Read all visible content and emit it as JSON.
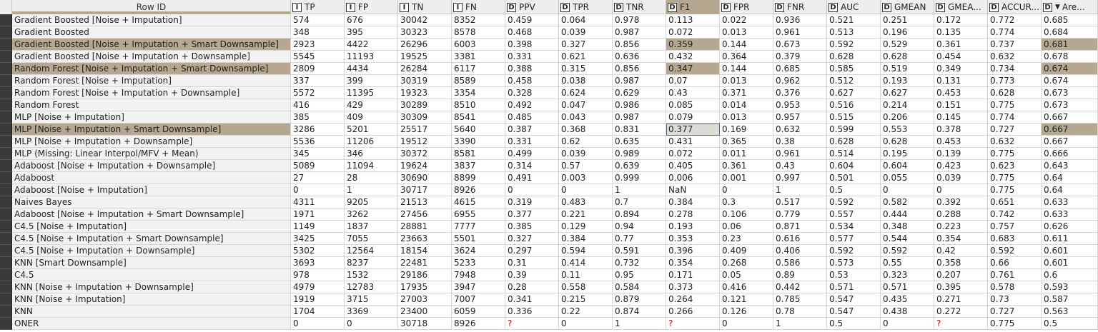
{
  "table": {
    "rowid_header": "Row ID",
    "columns": [
      {
        "type": "I",
        "label": "TP",
        "width": 75
      },
      {
        "type": "I",
        "label": "FP",
        "width": 75
      },
      {
        "type": "I",
        "label": "TN",
        "width": 75
      },
      {
        "type": "I",
        "label": "FN",
        "width": 75
      },
      {
        "type": "D",
        "label": "PPV",
        "width": 75
      },
      {
        "type": "D",
        "label": "TPR",
        "width": 75
      },
      {
        "type": "D",
        "label": "TNR",
        "width": 75
      },
      {
        "type": "D",
        "label": "F1",
        "width": 75
      },
      {
        "type": "D",
        "label": "FPR",
        "width": 75
      },
      {
        "type": "D",
        "label": "FNR",
        "width": 75
      },
      {
        "type": "D",
        "label": "AUC",
        "width": 75
      },
      {
        "type": "D",
        "label": "GMEAN",
        "width": 75
      },
      {
        "type": "D",
        "label": "GMEA...",
        "width": 75
      },
      {
        "type": "D",
        "label": "ACCUR...",
        "width": 75
      },
      {
        "type": "D",
        "label": "Are...",
        "width": 79
      }
    ],
    "rows": [
      {
        "id": "Gradient Boosted [Noise + Imputation]",
        "v": [
          "574",
          "676",
          "30042",
          "8352",
          "0.459",
          "0.064",
          "0.978",
          "0.113",
          "0.022",
          "0.936",
          "0.521",
          "0.251",
          "0.172",
          "0.772",
          "0.685"
        ]
      },
      {
        "id": "Gradient Boosted",
        "v": [
          "348",
          "395",
          "30323",
          "8578",
          "0.468",
          "0.039",
          "0.987",
          "0.072",
          "0.013",
          "0.961",
          "0.513",
          "0.196",
          "0.135",
          "0.774",
          "0.684"
        ]
      },
      {
        "id": "Gradient Boosted [Noise + Imputation + Smart Downsample]",
        "hl": true,
        "v": [
          "2923",
          "4422",
          "26296",
          "6003",
          "0.398",
          "0.327",
          "0.856",
          "0.359",
          "0.144",
          "0.673",
          "0.592",
          "0.529",
          "0.361",
          "0.737",
          "0.681"
        ]
      },
      {
        "id": "Gradient Boosted [Noise + Imputation + Downsample]",
        "v": [
          "5545",
          "11193",
          "19525",
          "3381",
          "0.331",
          "0.621",
          "0.636",
          "0.432",
          "0.364",
          "0.379",
          "0.628",
          "0.628",
          "0.454",
          "0.632",
          "0.678"
        ]
      },
      {
        "id": "Random Forest [Noise + Imputation + Smart Downsample]",
        "hl": true,
        "v": [
          "2809",
          "4434",
          "26284",
          "6117",
          "0.388",
          "0.315",
          "0.856",
          "0.347",
          "0.144",
          "0.685",
          "0.585",
          "0.519",
          "0.349",
          "0.734",
          "0.674"
        ]
      },
      {
        "id": "Random Forest [Noise + Imputation]",
        "v": [
          "337",
          "399",
          "30319",
          "8589",
          "0.458",
          "0.038",
          "0.987",
          "0.07",
          "0.013",
          "0.962",
          "0.512",
          "0.193",
          "0.131",
          "0.773",
          "0.674"
        ]
      },
      {
        "id": "Random Forest [Noise + Imputation + Downsample]",
        "v": [
          "5572",
          "11395",
          "19323",
          "3354",
          "0.328",
          "0.624",
          "0.629",
          "0.43",
          "0.371",
          "0.376",
          "0.627",
          "0.627",
          "0.453",
          "0.628",
          "0.673"
        ]
      },
      {
        "id": "Random Forest",
        "v": [
          "416",
          "429",
          "30289",
          "8510",
          "0.492",
          "0.047",
          "0.986",
          "0.085",
          "0.014",
          "0.953",
          "0.516",
          "0.214",
          "0.151",
          "0.775",
          "0.673"
        ]
      },
      {
        "id": "MLP [Noise + Imputation]",
        "v": [
          "385",
          "409",
          "30309",
          "8541",
          "0.485",
          "0.043",
          "0.987",
          "0.079",
          "0.013",
          "0.957",
          "0.515",
          "0.206",
          "0.145",
          "0.774",
          "0.667"
        ]
      },
      {
        "id": "MLP [Noise + Imputation + Smart Downsample]",
        "hl": true,
        "sel": true,
        "v": [
          "3286",
          "5201",
          "25517",
          "5640",
          "0.387",
          "0.368",
          "0.831",
          "0.377",
          "0.169",
          "0.632",
          "0.599",
          "0.553",
          "0.378",
          "0.727",
          "0.667"
        ]
      },
      {
        "id": "MLP [Noise + Imputation + Downsample]",
        "v": [
          "5536",
          "11206",
          "19512",
          "3390",
          "0.331",
          "0.62",
          "0.635",
          "0.431",
          "0.365",
          "0.38",
          "0.628",
          "0.628",
          "0.453",
          "0.632",
          "0.667"
        ]
      },
      {
        "id": "MLP (Missing: Linear Interpol/MFV + Mean)",
        "v": [
          "345",
          "346",
          "30372",
          "8581",
          "0.499",
          "0.039",
          "0.989",
          "0.072",
          "0.011",
          "0.961",
          "0.514",
          "0.195",
          "0.139",
          "0.775",
          "0.666"
        ]
      },
      {
        "id": "Adaboost [Noise + Imputation + Downsample]",
        "v": [
          "5089",
          "11094",
          "19624",
          "3837",
          "0.314",
          "0.57",
          "0.639",
          "0.405",
          "0.361",
          "0.43",
          "0.604",
          "0.604",
          "0.423",
          "0.623",
          "0.643"
        ]
      },
      {
        "id": "Adaboost",
        "v": [
          "27",
          "28",
          "30690",
          "8899",
          "0.491",
          "0.003",
          "0.999",
          "0.006",
          "0.001",
          "0.997",
          "0.501",
          "0.055",
          "0.039",
          "0.775",
          "0.64"
        ]
      },
      {
        "id": "Adaboost [Noise + Imputation]",
        "v": [
          "0",
          "1",
          "30717",
          "8926",
          "0",
          "0",
          "1",
          "NaN",
          "0",
          "1",
          "0.5",
          "0",
          "0",
          "0.775",
          "0.64"
        ]
      },
      {
        "id": "Naives Bayes",
        "v": [
          "4311",
          "9205",
          "21513",
          "4615",
          "0.319",
          "0.483",
          "0.7",
          "0.384",
          "0.3",
          "0.517",
          "0.592",
          "0.582",
          "0.392",
          "0.651",
          "0.633"
        ]
      },
      {
        "id": "Adaboost [Noise + Imputation + Smart Downsample]",
        "v": [
          "1971",
          "3262",
          "27456",
          "6955",
          "0.377",
          "0.221",
          "0.894",
          "0.278",
          "0.106",
          "0.779",
          "0.557",
          "0.444",
          "0.288",
          "0.742",
          "0.633"
        ]
      },
      {
        "id": "C4.5 [Noise + Imputation]",
        "v": [
          "1149",
          "1837",
          "28881",
          "7777",
          "0.385",
          "0.129",
          "0.94",
          "0.193",
          "0.06",
          "0.871",
          "0.534",
          "0.348",
          "0.223",
          "0.757",
          "0.626"
        ]
      },
      {
        "id": "C4.5 [Noise + Imputation + Smart Downsample]",
        "v": [
          "3425",
          "7055",
          "23663",
          "5501",
          "0.327",
          "0.384",
          "0.77",
          "0.353",
          "0.23",
          "0.616",
          "0.577",
          "0.544",
          "0.354",
          "0.683",
          "0.611"
        ]
      },
      {
        "id": "C4.5 [Noise + Imputation + Downsample]",
        "v": [
          "5302",
          "12564",
          "18154",
          "3624",
          "0.297",
          "0.594",
          "0.591",
          "0.396",
          "0.409",
          "0.406",
          "0.592",
          "0.592",
          "0.42",
          "0.592",
          "0.601"
        ]
      },
      {
        "id": "KNN [Smart Downsample]",
        "v": [
          "3693",
          "8237",
          "22481",
          "5233",
          "0.31",
          "0.414",
          "0.732",
          "0.354",
          "0.268",
          "0.586",
          "0.573",
          "0.55",
          "0.358",
          "0.66",
          "0.601"
        ]
      },
      {
        "id": "C4.5",
        "v": [
          "978",
          "1532",
          "29186",
          "7948",
          "0.39",
          "0.11",
          "0.95",
          "0.171",
          "0.05",
          "0.89",
          "0.53",
          "0.323",
          "0.207",
          "0.761",
          "0.6"
        ]
      },
      {
        "id": "KNN [Noise + Imputation + Downsample]",
        "v": [
          "4979",
          "12783",
          "17935",
          "3947",
          "0.28",
          "0.558",
          "0.584",
          "0.373",
          "0.416",
          "0.442",
          "0.571",
          "0.571",
          "0.395",
          "0.578",
          "0.593"
        ]
      },
      {
        "id": "KNN [Noise + Imputation]",
        "v": [
          "1919",
          "3715",
          "27003",
          "7007",
          "0.341",
          "0.215",
          "0.879",
          "0.264",
          "0.121",
          "0.785",
          "0.547",
          "0.435",
          "0.271",
          "0.73",
          "0.587"
        ]
      },
      {
        "id": "KNN",
        "v": [
          "1704",
          "3369",
          "23400",
          "6059",
          "0.336",
          "0.22",
          "0.874",
          "0.266",
          "0.126",
          "0.78",
          "0.547",
          "0.438",
          "0.272",
          "0.727",
          "0.563"
        ]
      },
      {
        "id": "ONER",
        "v": [
          "0",
          "0",
          "30718",
          "8926",
          "?",
          "0",
          "1",
          "?",
          "0",
          "1",
          "0.5",
          "0",
          "?",
          "0.775",
          "0.5"
        ]
      }
    ]
  },
  "colors": {
    "highlight": "#b6a890",
    "selection": "#5a6d88",
    "missing": "#cc0000"
  }
}
